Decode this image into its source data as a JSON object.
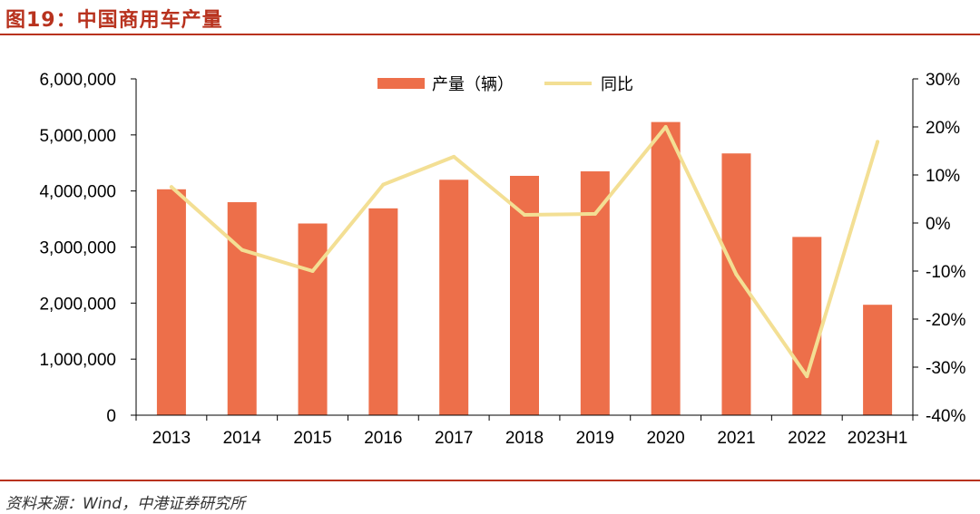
{
  "figure": {
    "title": "图19：中国商用车产量",
    "source": "资料来源：Wind，中港证券研究所"
  },
  "colors": {
    "bar": "#ed6f4a",
    "line": "#f3df94",
    "title": "#b8321e",
    "axis": "#000000"
  },
  "chart_data": {
    "type": "bar",
    "categories": [
      "2013",
      "2014",
      "2015",
      "2016",
      "2017",
      "2018",
      "2019",
      "2020",
      "2021",
      "2022",
      "2023H1"
    ],
    "series": [
      {
        "name": "产量（辆）",
        "type": "bar",
        "axis": "left",
        "values": [
          4030000,
          3800000,
          3420000,
          3690000,
          4200000,
          4270000,
          4350000,
          5230000,
          4670000,
          3180000,
          1970000
        ]
      },
      {
        "name": "同比",
        "type": "line",
        "axis": "right",
        "values": [
          7.5,
          -5.6,
          -10.0,
          8.0,
          13.8,
          1.7,
          1.9,
          20.0,
          -10.7,
          -31.9,
          16.9
        ]
      }
    ],
    "y_left": {
      "lim": [
        0,
        6000000
      ],
      "ticks": [
        0,
        1000000,
        2000000,
        3000000,
        4000000,
        5000000,
        6000000
      ],
      "tick_labels": [
        "0",
        "1,000,000",
        "2,000,000",
        "3,000,000",
        "4,000,000",
        "5,000,000",
        "6,000,000"
      ]
    },
    "y_right": {
      "lim": [
        -40,
        30
      ],
      "ticks": [
        -40,
        -30,
        -20,
        -10,
        0,
        10,
        20,
        30
      ],
      "tick_labels": [
        "-40%",
        "-30%",
        "-20%",
        "-10%",
        "0%",
        "10%",
        "20%",
        "30%"
      ]
    },
    "grid": false,
    "legend": "top-center"
  }
}
